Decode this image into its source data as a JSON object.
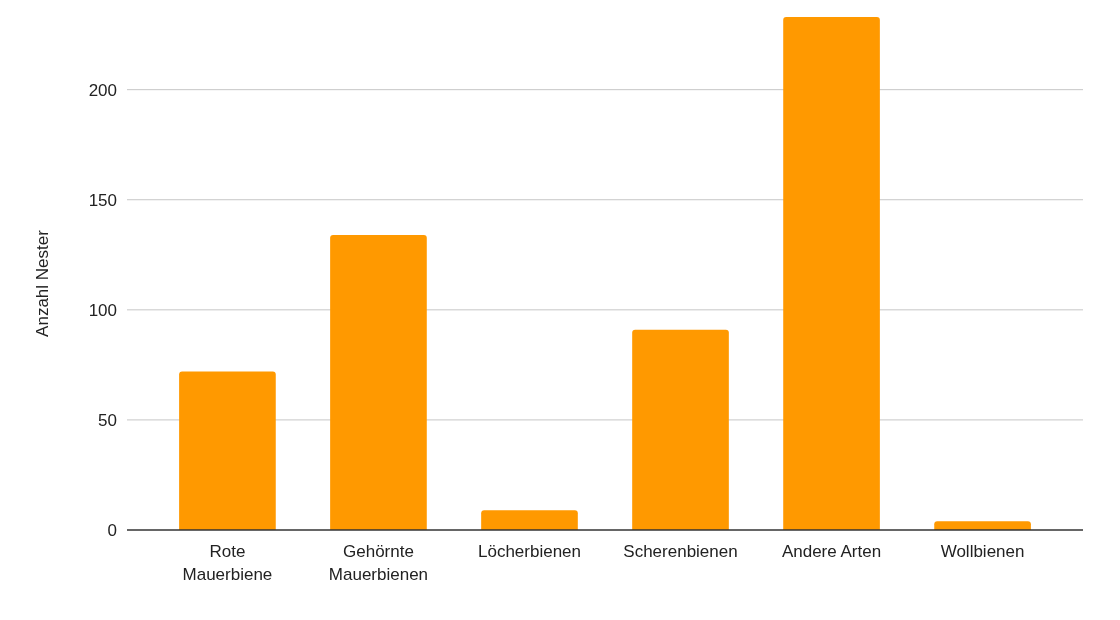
{
  "chart_data": {
    "type": "bar",
    "ylabel": "Anzahl Nester",
    "categories": [
      "Rote Mauerbiene",
      "Gehörnte Mauerbienen",
      "Löcherbienen",
      "Scherenbienen",
      "Andere Arten",
      "Wollbienen"
    ],
    "values": [
      72,
      134,
      9,
      91,
      233,
      4
    ],
    "color": "#ff9900",
    "ylim": [
      0,
      233
    ],
    "yticks": [
      0,
      50,
      100,
      150,
      200
    ],
    "grid": "y"
  }
}
